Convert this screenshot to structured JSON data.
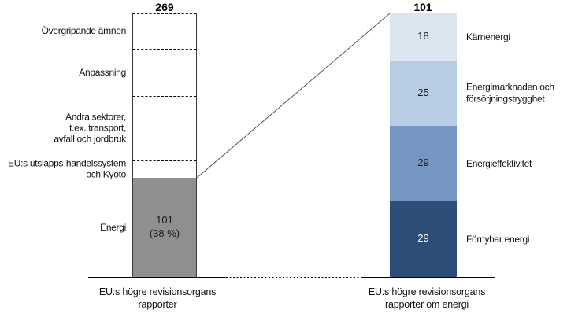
{
  "chart_data": {
    "type": "bar",
    "subtype": "stacked-vertical-comparison",
    "title": "",
    "grid": false,
    "legend": false,
    "unlabeled_left_segment_values_estimated": true,
    "connector_line_color": "#555555",
    "axis_line_color": "#000000",
    "bars": [
      {
        "id": "left",
        "total": 269,
        "total_label": "269",
        "axis_label": "EU:s högre revisionsorgans\nrapporter",
        "label_side": "left",
        "segments": [
          {
            "id": "overgripande-amnen",
            "label": "Övergripande ämnen",
            "value": 36,
            "value_label": "",
            "fill": "#ffffff",
            "text_color": "#1a1a1a",
            "boundary": "dashed"
          },
          {
            "id": "anpassning",
            "label": "Anpassning",
            "value": 48,
            "value_label": "",
            "fill": "#ffffff",
            "text_color": "#1a1a1a",
            "boundary": "dashed"
          },
          {
            "id": "andra-sektorer",
            "label": "Andra sektorer,\nt.ex. transport,\navfall och jordbruk",
            "value": 66,
            "value_label": "",
            "fill": "#ffffff",
            "text_color": "#1a1a1a",
            "boundary": "dashed"
          },
          {
            "id": "eu-ets-och-kyoto",
            "label": "EU:s utsläpps-handelssystem\noch Kyoto",
            "value": 18,
            "value_label": "",
            "fill": "#ffffff",
            "text_color": "#1a1a1a",
            "boundary": "dashed"
          },
          {
            "id": "energi",
            "label": "Energi",
            "value": 101,
            "value_label": "101\n(38 %)",
            "fill": "#8f8f8f",
            "text_color": "#1a1a1a",
            "boundary": "none"
          }
        ]
      },
      {
        "id": "right",
        "total": 101,
        "total_label": "101",
        "axis_label": "EU:s högre revisionsorgans\nrapporter om energi",
        "label_side": "right",
        "segments": [
          {
            "id": "karnenergi",
            "label": "Kärnenergi",
            "value": 18,
            "value_label": "18",
            "fill": "#dce6f1",
            "text_color": "#1a1a1a",
            "boundary": "none"
          },
          {
            "id": "energimarknaden",
            "label": "Energimarknaden och\nförsörjningstrygghet",
            "value": 25,
            "value_label": "25",
            "fill": "#b8cce4",
            "text_color": "#1a1a1a",
            "boundary": "none"
          },
          {
            "id": "energieffektivitet",
            "label": "Energieffektivitet",
            "value": 29,
            "value_label": "29",
            "fill": "#7596c3",
            "text_color": "#1a1a1a",
            "boundary": "none"
          },
          {
            "id": "fornybar-energi",
            "label": "Förnybar energi",
            "value": 29,
            "value_label": "29",
            "fill": "#2c4d75",
            "text_color": "#ffffff",
            "boundary": "none"
          }
        ]
      }
    ]
  }
}
